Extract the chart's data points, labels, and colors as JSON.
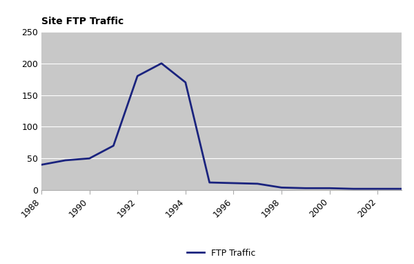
{
  "title": "Site FTP Traffic",
  "x_values": [
    1988,
    1989,
    1990,
    1991,
    1992,
    1993,
    1994,
    1995,
    1996,
    1997,
    1998,
    1999,
    2000,
    2001,
    2002,
    2003
  ],
  "y_values": [
    40,
    47,
    50,
    70,
    180,
    200,
    170,
    12,
    11,
    10,
    4,
    3,
    3,
    2,
    2,
    2
  ],
  "line_color": "#1a237e",
  "line_width": 2.0,
  "plot_bg_color": "#c8c8c8",
  "outer_bg_color": "#ffffff",
  "title_fontsize": 10,
  "title_fontweight": "bold",
  "legend_label": "FTP Traffic",
  "xlim": [
    1988,
    2003
  ],
  "ylim": [
    0,
    250
  ],
  "yticks": [
    0,
    50,
    100,
    150,
    200,
    250
  ],
  "xticks": [
    1988,
    1990,
    1992,
    1994,
    1996,
    1998,
    2000,
    2002
  ],
  "grid_color": "#ffffff",
  "grid_linewidth": 0.8,
  "tick_labelsize": 9,
  "legend_fontsize": 9
}
